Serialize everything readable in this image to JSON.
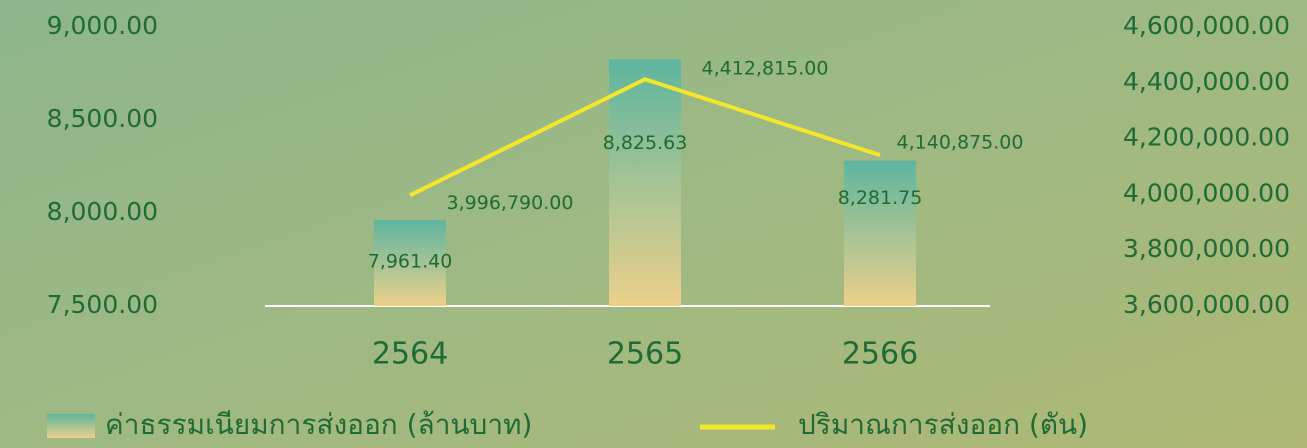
{
  "chart_data": {
    "type": "bar_line",
    "categories": [
      "2564",
      "2565",
      "2566"
    ],
    "series": [
      {
        "name": "ค่าธรรมเนียมการส่งออก (ล้านบาท)",
        "type": "bar",
        "color": "#5db5a0",
        "values": [
          7961.4,
          8825.63,
          8281.75
        ],
        "value_labels": [
          "7,961.40",
          "8,825.63",
          "8,281.75"
        ]
      },
      {
        "name": "ปริมาณการส่งออก (ตัน)",
        "type": "line",
        "axis": "y2",
        "color": "#f5e62a",
        "values": [
          3996790,
          4412815,
          4140875
        ],
        "value_labels": [
          "3,996,790.00",
          "4,412,815.00",
          "4,140,875.00"
        ]
      }
    ],
    "ylim": [
      7500,
      9000
    ],
    "yticks": [
      {
        "value": 7500,
        "label": "7,500.00"
      },
      {
        "value": 8000,
        "label": "8,000.00"
      },
      {
        "value": 8500,
        "label": "8,500.00"
      },
      {
        "value": 9000,
        "label": "9,000.00"
      }
    ],
    "y2lim": [
      3600000,
      4600000
    ],
    "y2ticks": [
      {
        "value": 3600000,
        "label": "3,600,000.00"
      },
      {
        "value": 3800000,
        "label": "3,800,000.00"
      },
      {
        "value": 4000000,
        "label": "4,000,000.00"
      },
      {
        "value": 4200000,
        "label": "4,200,000.00"
      },
      {
        "value": 4400000,
        "label": "4,400,000.00"
      },
      {
        "value": 4600000,
        "label": "4,600,000.00"
      }
    ],
    "grid": false
  }
}
